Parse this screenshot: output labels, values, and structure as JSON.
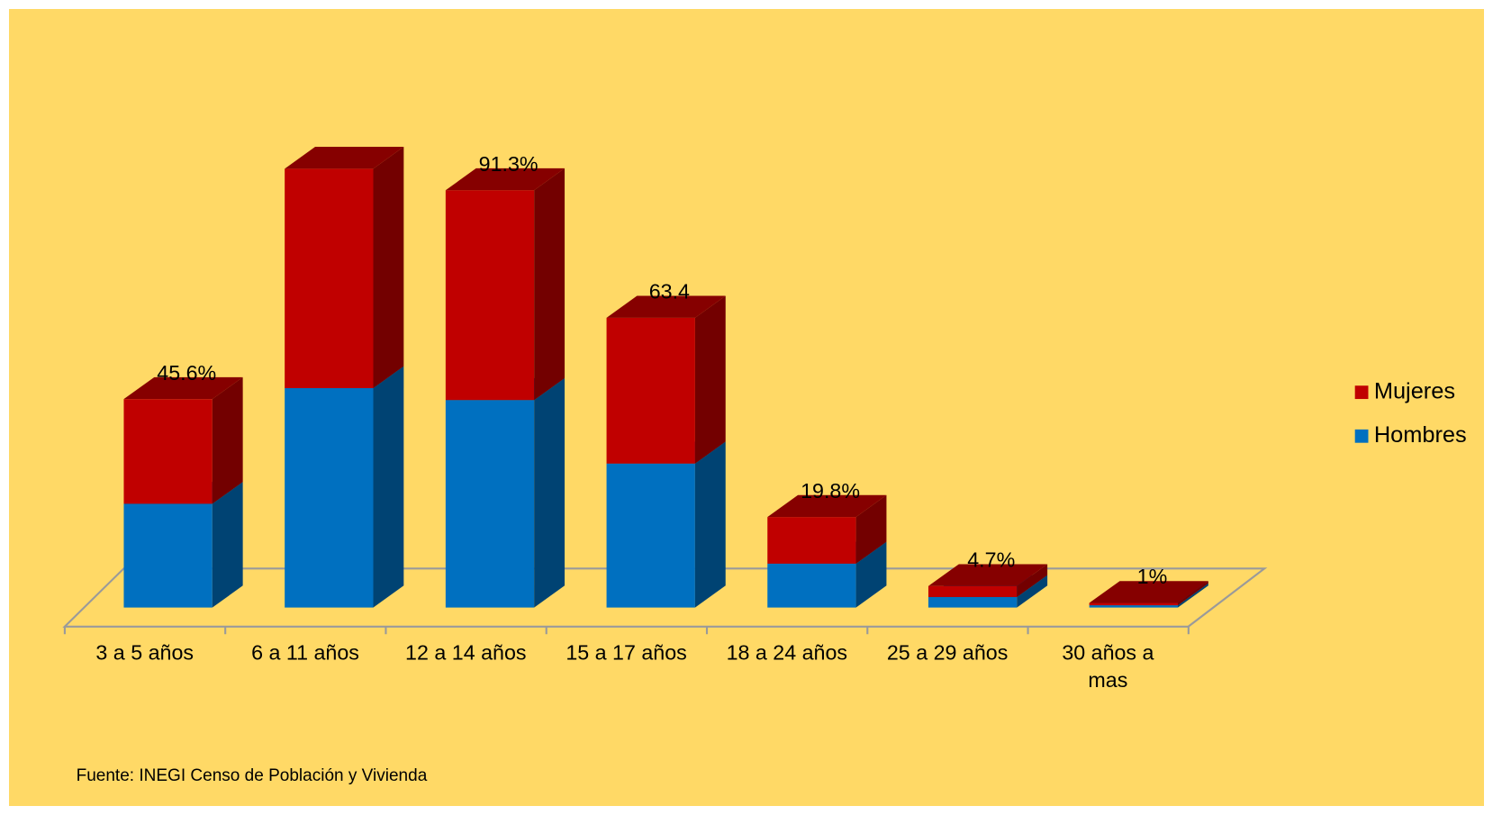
{
  "chart_data": {
    "type": "bar3d_stacked",
    "categories": [
      "3 a 5 años",
      "6 a 11 años",
      "12 a 14 años",
      "15 a 17 años",
      "18 a 24 años",
      "25 a 29 años",
      "30 años a mas"
    ],
    "series": [
      {
        "name": "Hombres",
        "color": "#0070c0",
        "values": [
          22.7,
          48,
          45.4,
          31.5,
          9.6,
          2.3,
          0.5
        ]
      },
      {
        "name": "Mujeres",
        "color": "#c00000",
        "values": [
          22.9,
          48,
          45.9,
          31.9,
          10.2,
          2.4,
          0.5
        ]
      }
    ],
    "totals": [
      45.6,
      96,
      91.3,
      63.4,
      19.8,
      4.7,
      1
    ],
    "total_labels": [
      "45.6%",
      null,
      "91.3%",
      "63.4",
      "19.8%",
      "4.7%",
      "1%"
    ],
    "ylim": [
      0,
      100
    ],
    "legend": "right",
    "source": "Fuente: INEGI Censo de Población y Vivienda"
  }
}
